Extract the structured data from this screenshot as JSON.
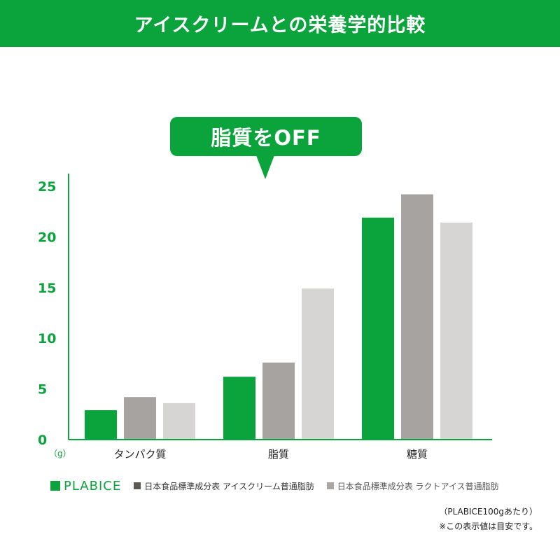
{
  "header": {
    "title": "アイスクリームとの栄養学的比較"
  },
  "callout": {
    "text": "脂質をOFF"
  },
  "unit_label": "（g）",
  "legend": [
    {
      "label": "PLABICE",
      "color": "#0aa33c"
    },
    {
      "label": "日本食品標準成分表 アイスクリーム普通脂肪",
      "color": "#5e5854"
    },
    {
      "label": "日本食品標準成分表 ラクトアイス普通脂肪",
      "color": "#a9a6a4"
    }
  ],
  "notes": {
    "line1": "（PLABICE100gあたり）",
    "line2": "※この表示値は目安です。"
  },
  "chart_data": {
    "type": "bar",
    "categories": [
      "タンパク質",
      "脂質",
      "糖質"
    ],
    "series": [
      {
        "name": "PLABICE",
        "color": "#0aa33c",
        "values": [
          2.9,
          6.2,
          21.9
        ]
      },
      {
        "name": "日本食品標準成分表 アイスクリーム普通脂肪",
        "color": "#a6a3a1",
        "values": [
          4.2,
          7.6,
          24.2
        ]
      },
      {
        "name": "日本食品標準成分表 ラクトアイス普通脂肪",
        "color": "#d6d5d4",
        "values": [
          3.6,
          14.9,
          21.4
        ]
      }
    ],
    "yticks": [
      0,
      5,
      10,
      15,
      20,
      25
    ],
    "ylim": [
      0,
      25
    ],
    "axis_color": "#0aa33c",
    "tick_label_color": "#0aa33c",
    "grid": false
  }
}
